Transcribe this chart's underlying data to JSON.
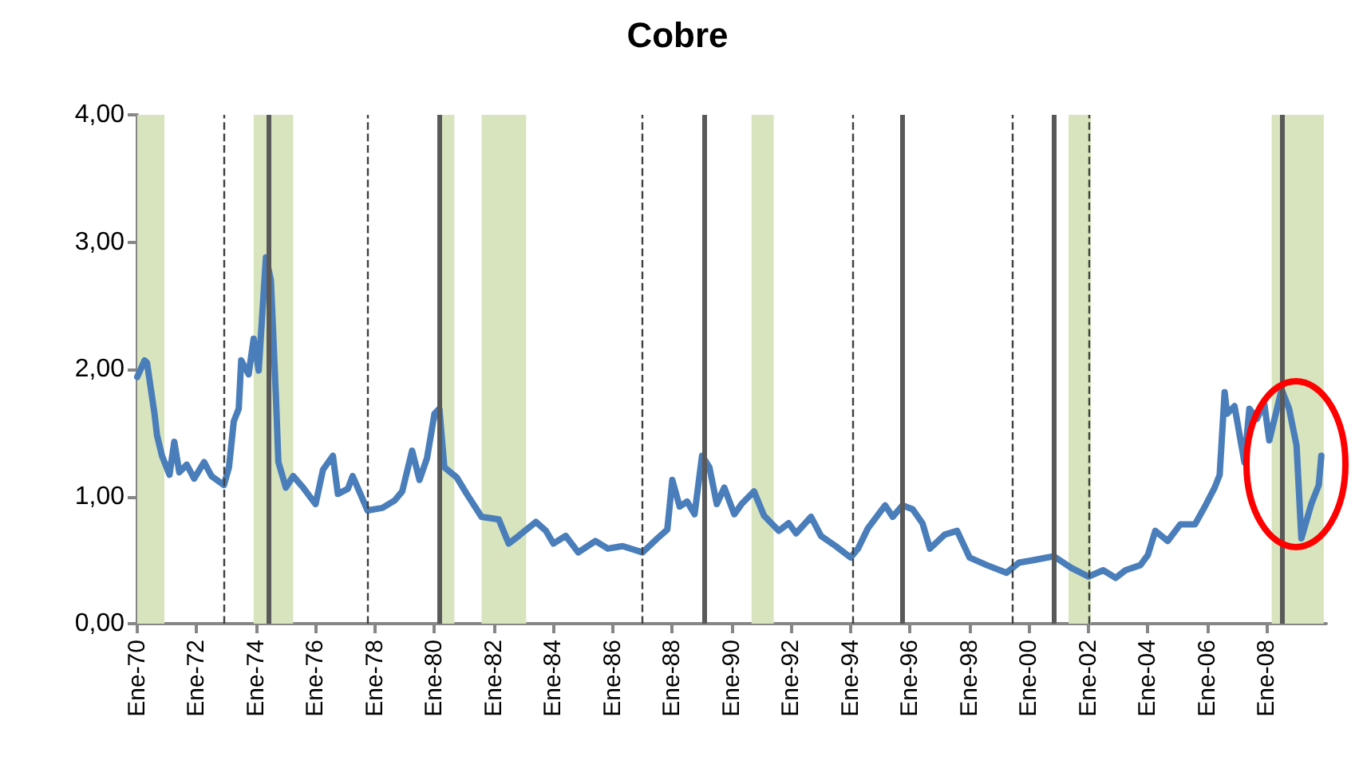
{
  "chart_data": {
    "type": "line",
    "title": "Cobre",
    "xlim": [
      "1970-01",
      "2010-01"
    ],
    "ylim": [
      0,
      4
    ],
    "xticks": [
      {
        "value": "1970-01",
        "label": "Ene-70"
      },
      {
        "value": "1972-01",
        "label": "Ene-72"
      },
      {
        "value": "1974-01",
        "label": "Ene-74"
      },
      {
        "value": "1976-01",
        "label": "Ene-76"
      },
      {
        "value": "1978-01",
        "label": "Ene-78"
      },
      {
        "value": "1980-01",
        "label": "Ene-80"
      },
      {
        "value": "1982-01",
        "label": "Ene-82"
      },
      {
        "value": "1984-01",
        "label": "Ene-84"
      },
      {
        "value": "1986-01",
        "label": "Ene-86"
      },
      {
        "value": "1988-01",
        "label": "Ene-88"
      },
      {
        "value": "1990-01",
        "label": "Ene-90"
      },
      {
        "value": "1992-01",
        "label": "Ene-92"
      },
      {
        "value": "1994-01",
        "label": "Ene-94"
      },
      {
        "value": "1996-01",
        "label": "Ene-96"
      },
      {
        "value": "1998-01",
        "label": "Ene-98"
      },
      {
        "value": "2000-01",
        "label": "Ene-00"
      },
      {
        "value": "2002-01",
        "label": "Ene-02"
      },
      {
        "value": "2004-01",
        "label": "Ene-04"
      },
      {
        "value": "2006-01",
        "label": "Ene-06"
      },
      {
        "value": "2008-01",
        "label": "Ene-08"
      }
    ],
    "yticks": [
      {
        "value": 0,
        "label": "0,00"
      },
      {
        "value": 1,
        "label": "1,00"
      },
      {
        "value": 2,
        "label": "2,00"
      },
      {
        "value": 3,
        "label": "3,00"
      },
      {
        "value": 4,
        "label": "4,00"
      }
    ],
    "marker": "none",
    "line_style": "solid",
    "series": [
      {
        "color": "#4a7ebb",
        "x": [
          "1970-01",
          "1970-04",
          "1970-05",
          "1970-08",
          "1970-09",
          "1970-11",
          "1971-02",
          "1971-04",
          "1971-06",
          "1971-09",
          "1971-12",
          "1972-04",
          "1972-07",
          "1972-12",
          "1973-02",
          "1973-04",
          "1973-06",
          "1973-07",
          "1973-10",
          "1973-12",
          "1974-02",
          "1974-05",
          "1974-07",
          "1974-09",
          "1974-10",
          "1975-01",
          "1975-04",
          "1975-08",
          "1976-01",
          "1976-04",
          "1976-08",
          "1976-10",
          "1977-02",
          "1977-04",
          "1977-10",
          "1978-04",
          "1978-09",
          "1978-12",
          "1979-04",
          "1979-07",
          "1979-10",
          "1980-01",
          "1980-03",
          "1980-05",
          "1980-10",
          "1981-02",
          "1981-08",
          "1982-03",
          "1982-07",
          "1982-11",
          "1983-06",
          "1983-10",
          "1984-01",
          "1984-06",
          "1984-11",
          "1985-06",
          "1985-11",
          "1986-05",
          "1987-01",
          "1987-07",
          "1987-11",
          "1988-01",
          "1988-04",
          "1988-07",
          "1988-10",
          "1989-01",
          "1989-04",
          "1989-07",
          "1989-10",
          "1990-02",
          "1990-05",
          "1990-10",
          "1991-02",
          "1991-08",
          "1991-12",
          "1992-03",
          "1992-09",
          "1993-01",
          "1993-07",
          "1994-01",
          "1994-04",
          "1994-08",
          "1995-03",
          "1995-06",
          "1995-10",
          "1996-02",
          "1996-06",
          "1996-09",
          "1997-03",
          "1997-08",
          "1998-01",
          "1998-08",
          "1999-04",
          "1999-09",
          "2000-03",
          "2000-11",
          "2001-06",
          "2002-01",
          "2002-07",
          "2002-12",
          "2003-04",
          "2003-10",
          "2004-01",
          "2004-04",
          "2004-09",
          "2005-02",
          "2005-08",
          "2005-12",
          "2006-04",
          "2006-06",
          "2006-08",
          "2006-09",
          "2006-12",
          "2007-04",
          "2007-06",
          "2007-09",
          "2007-12",
          "2008-02",
          "2008-07",
          "2008-10",
          "2009-01",
          "2009-03",
          "2009-07",
          "2009-10",
          "2009-11"
        ],
        "values": [
          1.94,
          2.07,
          2.05,
          1.65,
          1.48,
          1.32,
          1.17,
          1.43,
          1.19,
          1.25,
          1.14,
          1.27,
          1.16,
          1.09,
          1.23,
          1.59,
          1.69,
          2.07,
          1.96,
          2.24,
          1.99,
          2.88,
          2.7,
          1.78,
          1.27,
          1.07,
          1.16,
          1.07,
          0.94,
          1.21,
          1.32,
          1.02,
          1.06,
          1.16,
          0.89,
          0.91,
          0.97,
          1.04,
          1.36,
          1.13,
          1.3,
          1.65,
          1.69,
          1.23,
          1.15,
          1.02,
          0.84,
          0.82,
          0.63,
          0.69,
          0.8,
          0.73,
          0.63,
          0.69,
          0.56,
          0.65,
          0.59,
          0.61,
          0.56,
          0.67,
          0.74,
          1.13,
          0.92,
          0.96,
          0.86,
          1.32,
          1.23,
          0.94,
          1.07,
          0.86,
          0.94,
          1.04,
          0.85,
          0.73,
          0.79,
          0.71,
          0.84,
          0.69,
          0.61,
          0.52,
          0.59,
          0.75,
          0.93,
          0.84,
          0.93,
          0.9,
          0.79,
          0.59,
          0.7,
          0.73,
          0.52,
          0.46,
          0.4,
          0.48,
          0.5,
          0.53,
          0.44,
          0.37,
          0.42,
          0.36,
          0.42,
          0.46,
          0.54,
          0.73,
          0.65,
          0.78,
          0.78,
          0.92,
          1.07,
          1.17,
          1.82,
          1.65,
          1.71,
          1.27,
          1.69,
          1.61,
          1.73,
          1.44,
          1.84,
          1.69,
          1.4,
          0.67,
          0.94,
          1.09,
          1.32
        ]
      }
    ],
    "bands": [
      {
        "axis": "x",
        "from": "1970-01",
        "to": "1970-12",
        "color": "#d7e4bd"
      },
      {
        "axis": "x",
        "from": "1973-12",
        "to": "1975-04",
        "color": "#d7e4bd"
      },
      {
        "axis": "x",
        "from": "1980-04",
        "to": "1980-09",
        "color": "#d7e4bd"
      },
      {
        "axis": "x",
        "from": "1981-08",
        "to": "1983-02",
        "color": "#d7e4bd"
      },
      {
        "axis": "x",
        "from": "1990-09",
        "to": "1991-06",
        "color": "#d7e4bd"
      },
      {
        "axis": "x",
        "from": "2001-05",
        "to": "2002-02",
        "color": "#d7e4bd"
      },
      {
        "axis": "x",
        "from": "2008-03",
        "to": "2009-12",
        "color": "#d7e4bd"
      }
    ],
    "ref_lines": [
      {
        "axis": "x",
        "value": "1972-12",
        "color": "#404040",
        "line_style": "dashed"
      },
      {
        "axis": "x",
        "value": "1974-06",
        "color": "#595959",
        "line_style": "solid"
      },
      {
        "axis": "x",
        "value": "1977-10",
        "color": "#404040",
        "line_style": "dashed"
      },
      {
        "axis": "x",
        "value": "1980-03",
        "color": "#595959",
        "line_style": "solid"
      },
      {
        "axis": "x",
        "value": "1987-01",
        "color": "#404040",
        "line_style": "dashed"
      },
      {
        "axis": "x",
        "value": "1989-02",
        "color": "#595959",
        "line_style": "solid"
      },
      {
        "axis": "x",
        "value": "1994-02",
        "color": "#404040",
        "line_style": "dashed"
      },
      {
        "axis": "x",
        "value": "1995-10",
        "color": "#595959",
        "line_style": "solid"
      },
      {
        "axis": "x",
        "value": "1999-06",
        "color": "#404040",
        "line_style": "dashed"
      },
      {
        "axis": "x",
        "value": "2000-11",
        "color": "#595959",
        "line_style": "solid"
      },
      {
        "axis": "x",
        "value": "2002-01",
        "color": "#404040",
        "line_style": "dashed"
      },
      {
        "axis": "x",
        "value": "2008-07",
        "color": "#595959",
        "line_style": "solid"
      }
    ]
  }
}
